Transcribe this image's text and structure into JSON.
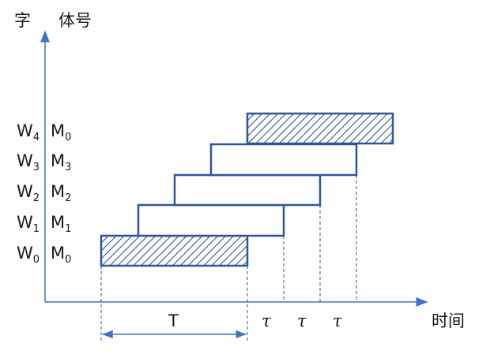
{
  "axes": {
    "y_label_left": "字",
    "y_label_right": "体号",
    "x_label": "时间"
  },
  "rows": [
    {
      "word": "W",
      "word_sub": "0",
      "bank": "M",
      "bank_sub": "0",
      "hatched": true
    },
    {
      "word": "W",
      "word_sub": "1",
      "bank": "M",
      "bank_sub": "1",
      "hatched": false
    },
    {
      "word": "W",
      "word_sub": "2",
      "bank": "M",
      "bank_sub": "2",
      "hatched": false
    },
    {
      "word": "W",
      "word_sub": "3",
      "bank": "M",
      "bank_sub": "3",
      "hatched": false
    },
    {
      "word": "W",
      "word_sub": "4",
      "bank": "M",
      "bank_sub": "0",
      "hatched": true
    }
  ],
  "intervals": {
    "period_label": "T",
    "offset_labels": [
      "τ",
      "τ",
      "τ"
    ]
  },
  "colors": {
    "axis": "#4472c4",
    "box_stroke": "#2f5597",
    "hatch": "#2f5597",
    "guide": "#2f5597"
  }
}
